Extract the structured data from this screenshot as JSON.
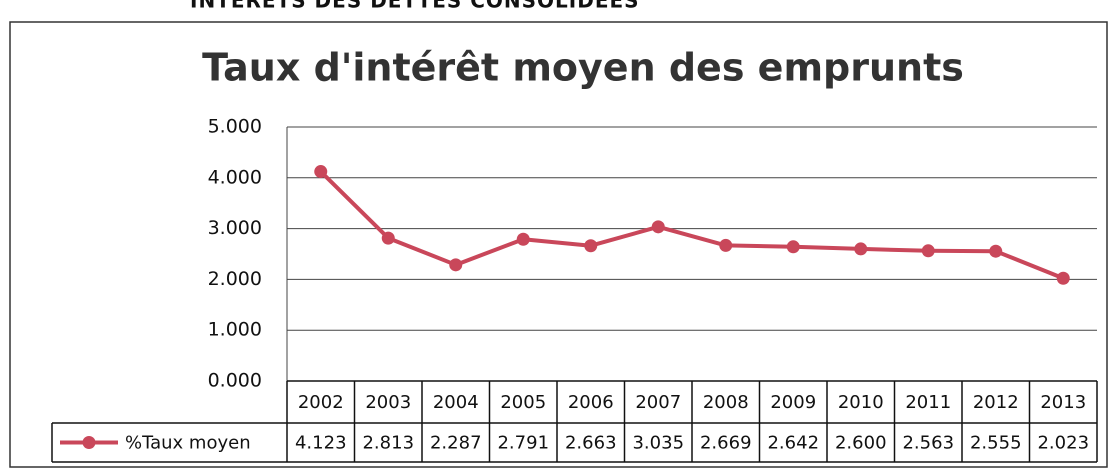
{
  "header": "INTERETS DES DETTES CONSOLIDEES",
  "chart_data": {
    "type": "line",
    "title": "Taux d'intérêt moyen des emprunts",
    "categories": [
      "2002",
      "2003",
      "2004",
      "2005",
      "2006",
      "2007",
      "2008",
      "2009",
      "2010",
      "2011",
      "2012",
      "2013"
    ],
    "series": [
      {
        "name": "%Taux moyen",
        "color": "#c9475a",
        "values": [
          4.123,
          2.813,
          2.287,
          2.791,
          2.663,
          3.035,
          2.669,
          2.642,
          2.6,
          2.563,
          2.555,
          2.023
        ],
        "value_labels": [
          "4.123",
          "2.813",
          "2.287",
          "2.791",
          "2.663",
          "3.035",
          "2.669",
          "2.642",
          "2.600",
          "2.563",
          "2.555",
          "2.023"
        ]
      }
    ],
    "ylim": [
      0,
      5
    ],
    "yticks": [
      {
        "value": 0,
        "label": "0.000"
      },
      {
        "value": 1,
        "label": "1.000"
      },
      {
        "value": 2,
        "label": "2.000"
      },
      {
        "value": 3,
        "label": "3.000"
      },
      {
        "value": 4,
        "label": "4.000"
      },
      {
        "value": 5,
        "label": "5.000"
      }
    ],
    "grid": true,
    "legend": "table"
  }
}
